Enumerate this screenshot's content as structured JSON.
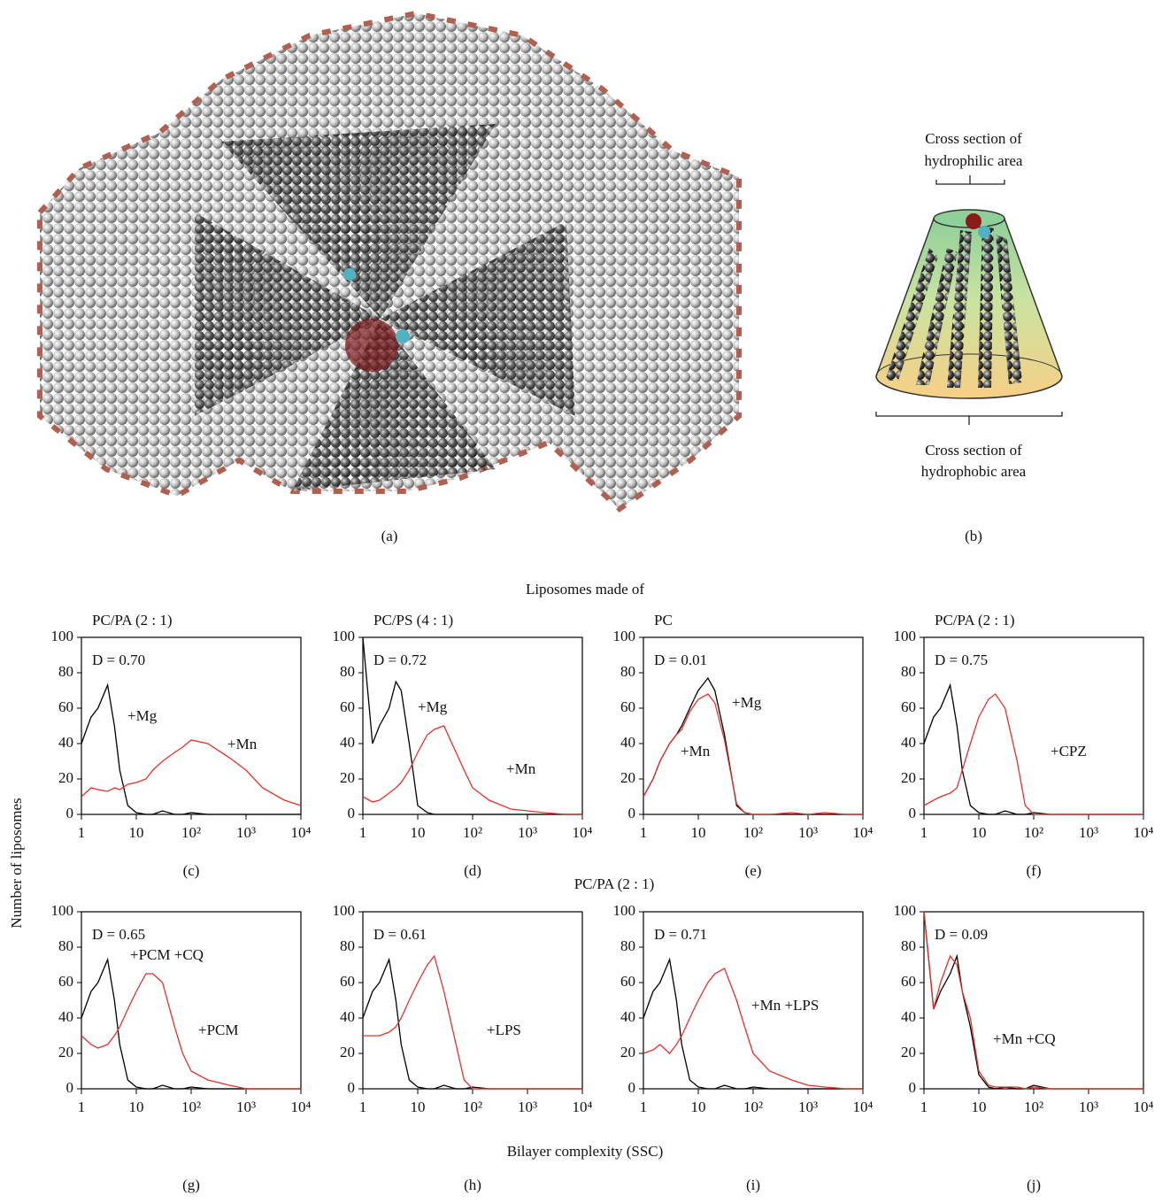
{
  "figure": {
    "panel_a_label": "(a)",
    "panel_b_label": "(b)",
    "hydrophilic_label": [
      "Cross section of",
      "hydrophilic area"
    ],
    "hydrophobic_label": [
      "Cross section of",
      "hydrophobic area"
    ],
    "group_title": "Liposomes made of",
    "row2_title": "PC/PA (2 : 1)",
    "y_label": "Number of liposomes",
    "x_label": "Bilayer complexity (SSC)"
  },
  "chart_data": [
    {
      "type": "line",
      "title": "PC/PA (2 : 1)",
      "annotation": "D = 0.70",
      "panel_label": "(c)",
      "xscale": "log",
      "xlim": [
        1,
        10000
      ],
      "ylim": [
        0,
        100
      ],
      "yticks": [
        0,
        20,
        40,
        60,
        80,
        100
      ],
      "xticks": [
        1,
        10,
        {
          "value": 100,
          "label": "10²"
        },
        {
          "value": 1000,
          "label": "10³"
        },
        {
          "value": 10000,
          "label": "10⁴"
        }
      ],
      "x": [
        1,
        1.5,
        2,
        3,
        4,
        5,
        7,
        10,
        15,
        20,
        30,
        50,
        70,
        100,
        200,
        500,
        1000,
        2000,
        5000,
        10000
      ],
      "series": [
        {
          "name": "+Mg",
          "color": "#000000",
          "values": [
            40,
            55,
            60,
            73,
            50,
            25,
            5,
            1,
            0,
            0,
            2,
            0,
            0,
            1,
            0,
            0,
            0,
            0,
            0,
            0
          ]
        },
        {
          "name": "+Mn",
          "color": "#e8302a",
          "values": [
            10,
            15,
            14,
            13,
            15,
            14,
            17,
            18,
            20,
            25,
            30,
            35,
            38,
            42,
            40,
            32,
            25,
            15,
            8,
            5
          ]
        }
      ]
    },
    {
      "type": "line",
      "title": "PC/PS (4 : 1)",
      "annotation": "D = 0.72",
      "panel_label": "(d)",
      "xscale": "log",
      "xlim": [
        1,
        10000
      ],
      "ylim": [
        0,
        100
      ],
      "yticks": [
        0,
        20,
        40,
        60,
        80,
        100
      ],
      "xticks": [
        1,
        10,
        {
          "value": 100,
          "label": "10²"
        },
        {
          "value": 1000,
          "label": "10³"
        },
        {
          "value": 10000,
          "label": "10⁴"
        }
      ],
      "x": [
        1,
        1.5,
        2,
        3,
        4,
        5,
        7,
        10,
        15,
        20,
        30,
        50,
        70,
        100,
        200,
        500,
        1000,
        2000,
        5000,
        10000
      ],
      "series": [
        {
          "name": "+Mg",
          "color": "#000000",
          "values": [
            100,
            40,
            50,
            60,
            75,
            70,
            40,
            5,
            1,
            0,
            0,
            0,
            0,
            0,
            0,
            0,
            0,
            0,
            0,
            0
          ]
        },
        {
          "name": "+Mn",
          "color": "#e8302a",
          "values": [
            10,
            7,
            8,
            12,
            15,
            18,
            25,
            35,
            45,
            48,
            50,
            35,
            25,
            15,
            8,
            3,
            2,
            1,
            0,
            0
          ]
        }
      ]
    },
    {
      "type": "line",
      "title": "PC",
      "annotation": "D = 0.01",
      "panel_label": "(e)",
      "xscale": "log",
      "xlim": [
        1,
        10000
      ],
      "ylim": [
        0,
        100
      ],
      "yticks": [
        0,
        20,
        40,
        60,
        80,
        100
      ],
      "xticks": [
        1,
        10,
        {
          "value": 100,
          "label": "10²"
        },
        {
          "value": 1000,
          "label": "10³"
        },
        {
          "value": 10000,
          "label": "10⁴"
        }
      ],
      "x": [
        1,
        1.5,
        2,
        3,
        4,
        5,
        7,
        10,
        15,
        20,
        30,
        50,
        70,
        100,
        200,
        500,
        1000,
        2000,
        5000,
        10000
      ],
      "series": [
        {
          "name": "+Mg",
          "color": "#000000",
          "values": [
            10,
            20,
            30,
            40,
            45,
            50,
            60,
            70,
            77,
            70,
            45,
            5,
            1,
            0,
            0,
            0,
            0,
            0,
            0,
            0
          ]
        },
        {
          "name": "+Mn",
          "color": "#e8302a",
          "values": [
            10,
            20,
            30,
            40,
            45,
            48,
            58,
            65,
            68,
            63,
            42,
            6,
            1,
            0,
            0,
            1,
            0,
            1,
            0,
            0
          ]
        }
      ]
    },
    {
      "type": "line",
      "title": "PC/PA (2 : 1)",
      "annotation": "D = 0.75",
      "panel_label": "(f)",
      "xscale": "log",
      "xlim": [
        1,
        10000
      ],
      "ylim": [
        0,
        100
      ],
      "yticks": [
        0,
        20,
        40,
        60,
        80,
        100
      ],
      "xticks": [
        1,
        10,
        {
          "value": 100,
          "label": "10²"
        },
        {
          "value": 1000,
          "label": "10³"
        },
        {
          "value": 10000,
          "label": "10⁴"
        }
      ],
      "x": [
        1,
        1.5,
        2,
        3,
        4,
        5,
        7,
        10,
        15,
        20,
        30,
        50,
        70,
        100,
        200,
        500,
        1000,
        2000,
        5000,
        10000
      ],
      "series": [
        {
          "color": "#000000",
          "values": [
            40,
            55,
            60,
            73,
            50,
            25,
            5,
            1,
            0,
            0,
            2,
            0,
            0,
            1,
            0,
            0,
            0,
            0,
            0,
            0
          ]
        },
        {
          "name": "+CPZ",
          "color": "#e8302a",
          "values": [
            5,
            8,
            10,
            12,
            15,
            25,
            40,
            55,
            65,
            68,
            60,
            30,
            5,
            0,
            0,
            0,
            0,
            0,
            0,
            0
          ]
        }
      ]
    },
    {
      "type": "line",
      "annotation": "D = 0.65",
      "panel_label": "(g)",
      "xscale": "log",
      "xlim": [
        1,
        10000
      ],
      "ylim": [
        0,
        100
      ],
      "yticks": [
        0,
        20,
        40,
        60,
        80,
        100
      ],
      "xticks": [
        1,
        10,
        {
          "value": 100,
          "label": "10²"
        },
        {
          "value": 1000,
          "label": "10³"
        },
        {
          "value": 10000,
          "label": "10⁴"
        }
      ],
      "x": [
        1,
        1.5,
        2,
        3,
        4,
        5,
        7,
        10,
        15,
        20,
        30,
        50,
        70,
        100,
        200,
        500,
        1000,
        2000,
        5000,
        10000
      ],
      "series": [
        {
          "name": "+PCM +CQ",
          "color": "#000000",
          "values": [
            40,
            55,
            60,
            73,
            50,
            25,
            5,
            1,
            0,
            0,
            2,
            0,
            0,
            1,
            0,
            0,
            0,
            0,
            0,
            0
          ]
        },
        {
          "name": "+PCM",
          "color": "#e8302a",
          "values": [
            30,
            25,
            23,
            25,
            30,
            35,
            45,
            55,
            65,
            65,
            60,
            35,
            20,
            10,
            5,
            2,
            0,
            0,
            0,
            0
          ]
        }
      ]
    },
    {
      "type": "line",
      "annotation": "D = 0.61",
      "panel_label": "(h)",
      "xscale": "log",
      "xlim": [
        1,
        10000
      ],
      "ylim": [
        0,
        100
      ],
      "yticks": [
        0,
        20,
        40,
        60,
        80,
        100
      ],
      "xticks": [
        1,
        10,
        {
          "value": 100,
          "label": "10²"
        },
        {
          "value": 1000,
          "label": "10³"
        },
        {
          "value": 10000,
          "label": "10⁴"
        }
      ],
      "x": [
        1,
        1.5,
        2,
        3,
        4,
        5,
        7,
        10,
        15,
        20,
        30,
        50,
        70,
        100,
        200,
        500,
        1000,
        2000,
        5000,
        10000
      ],
      "series": [
        {
          "color": "#000000",
          "values": [
            40,
            55,
            60,
            73,
            50,
            25,
            5,
            1,
            0,
            0,
            2,
            0,
            0,
            1,
            0,
            0,
            0,
            0,
            0,
            0
          ]
        },
        {
          "name": "+LPS",
          "color": "#e8302a",
          "values": [
            30,
            30,
            30,
            32,
            35,
            40,
            50,
            60,
            70,
            75,
            55,
            25,
            5,
            0,
            0,
            0,
            0,
            0,
            0,
            0
          ]
        }
      ]
    },
    {
      "type": "line",
      "annotation": "D = 0.71",
      "panel_label": "(i)",
      "xscale": "log",
      "xlim": [
        1,
        10000
      ],
      "ylim": [
        0,
        100
      ],
      "yticks": [
        0,
        20,
        40,
        60,
        80,
        100
      ],
      "xticks": [
        1,
        10,
        {
          "value": 100,
          "label": "10²"
        },
        {
          "value": 1000,
          "label": "10³"
        },
        {
          "value": 10000,
          "label": "10⁴"
        }
      ],
      "x": [
        1,
        1.5,
        2,
        3,
        4,
        5,
        7,
        10,
        15,
        20,
        30,
        50,
        70,
        100,
        200,
        500,
        1000,
        2000,
        5000,
        10000
      ],
      "series": [
        {
          "color": "#000000",
          "values": [
            40,
            55,
            60,
            73,
            50,
            25,
            5,
            1,
            0,
            0,
            2,
            0,
            0,
            1,
            0,
            0,
            0,
            0,
            0,
            0
          ]
        },
        {
          "name": "+Mn +LPS",
          "color": "#e8302a",
          "values": [
            20,
            22,
            25,
            20,
            25,
            30,
            40,
            50,
            60,
            65,
            68,
            50,
            35,
            20,
            10,
            5,
            2,
            1,
            0,
            0
          ]
        }
      ]
    },
    {
      "type": "line",
      "annotation": "D = 0.09",
      "panel_label": "(j)",
      "xscale": "log",
      "xlim": [
        1,
        10000
      ],
      "ylim": [
        0,
        100
      ],
      "yticks": [
        0,
        20,
        40,
        60,
        80,
        100
      ],
      "xticks": [
        1,
        10,
        {
          "value": 100,
          "label": "10²"
        },
        {
          "value": 1000,
          "label": "10³"
        },
        {
          "value": 10000,
          "label": "10⁴"
        }
      ],
      "x": [
        1,
        1.5,
        2,
        3,
        4,
        5,
        7,
        10,
        15,
        20,
        30,
        50,
        70,
        100,
        200,
        500,
        1000,
        2000,
        5000,
        10000
      ],
      "series": [
        {
          "color": "#000000",
          "values": [
            100,
            45,
            55,
            65,
            75,
            55,
            35,
            8,
            1,
            0,
            1,
            0,
            0,
            2,
            0,
            0,
            0,
            0,
            0,
            0
          ]
        },
        {
          "name": "+Mn +CQ",
          "color": "#e8302a",
          "values": [
            100,
            45,
            60,
            75,
            70,
            55,
            40,
            10,
            2,
            1,
            1,
            1,
            0,
            1,
            0,
            0,
            0,
            0,
            0,
            0
          ]
        }
      ]
    }
  ]
}
